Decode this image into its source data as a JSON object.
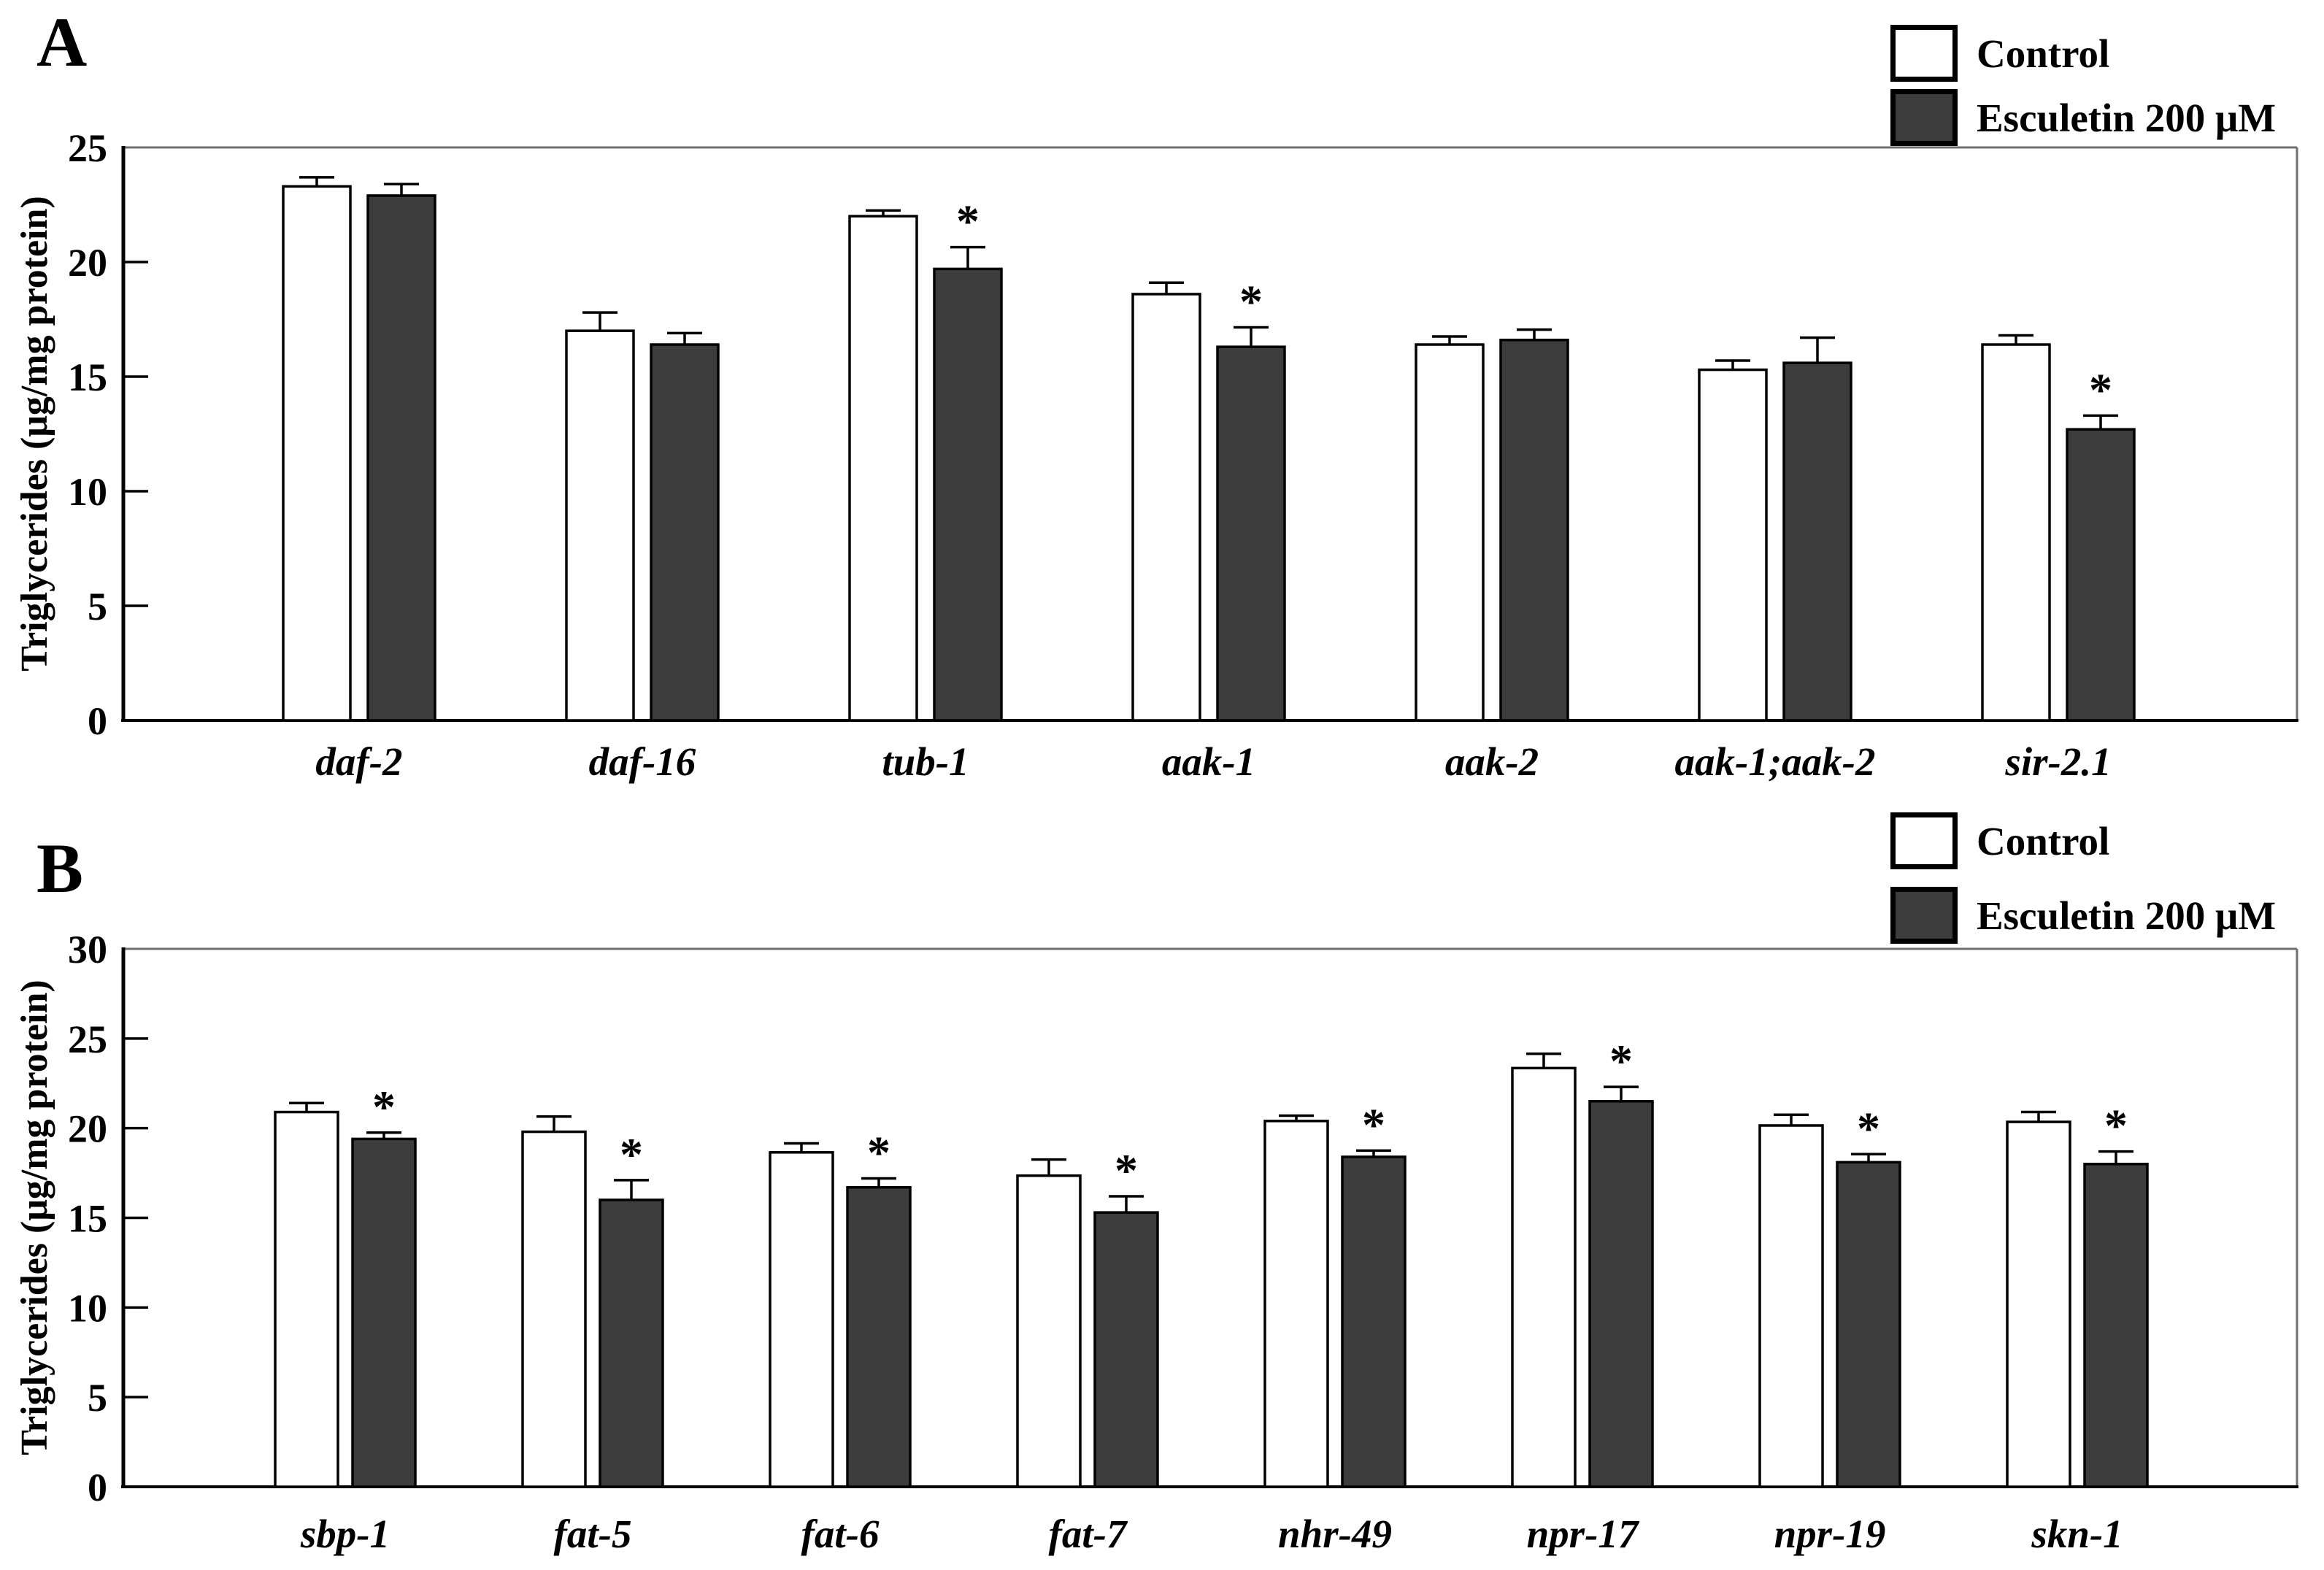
{
  "figure": {
    "background": "#ffffff",
    "significance_marker": "*",
    "colors": {
      "control_fill": "#ffffff",
      "esculetin_fill": "#3d3d3d",
      "bar_stroke": "#000000",
      "frame_gray": "#6f6f6f",
      "axis_black": "#000000"
    }
  },
  "panels": [
    {
      "label": "A",
      "legend": {
        "items": [
          {
            "label": "Control",
            "fill": "#ffffff"
          },
          {
            "label": "Esculetin 200 μM",
            "fill": "#3d3d3d"
          }
        ]
      },
      "chart_data": {
        "type": "bar",
        "title": "",
        "xlabel": "",
        "ylabel": "Triglycerides (μg/mg protein)",
        "ylim": [
          0,
          25
        ],
        "yticks": [
          0,
          5,
          10,
          15,
          20,
          25
        ],
        "grid": false,
        "legend_position": "top-right",
        "error_bars": "upper-sd",
        "significance_marker": "*",
        "categories": [
          "daf-2",
          "daf-16",
          "tub-1",
          "aak-1",
          "aak-2",
          "aak-1;aak-2",
          "sir-2.1"
        ],
        "series": [
          {
            "name": "Control",
            "fill": "#ffffff",
            "values": [
              23.3,
              17.0,
              22.0,
              18.6,
              16.4,
              15.3,
              16.4
            ],
            "errors": [
              0.4,
              0.8,
              0.25,
              0.5,
              0.35,
              0.4,
              0.4
            ],
            "significant": [
              false,
              false,
              false,
              false,
              false,
              false,
              false
            ]
          },
          {
            "name": "Esculetin 200 μM",
            "fill": "#3d3d3d",
            "values": [
              22.9,
              16.4,
              19.7,
              16.3,
              16.6,
              15.6,
              12.7
            ],
            "errors": [
              0.5,
              0.5,
              0.95,
              0.85,
              0.45,
              1.1,
              0.6
            ],
            "significant": [
              false,
              false,
              true,
              true,
              false,
              false,
              true
            ]
          }
        ]
      }
    },
    {
      "label": "B",
      "legend": {
        "items": [
          {
            "label": "Control",
            "fill": "#ffffff"
          },
          {
            "label": "Esculetin 200 μM",
            "fill": "#3d3d3d"
          }
        ]
      },
      "chart_data": {
        "type": "bar",
        "title": "",
        "xlabel": "",
        "ylabel": "Triglycerides (μg/mg protein)",
        "ylim": [
          0,
          30
        ],
        "yticks": [
          0,
          5,
          10,
          15,
          20,
          25,
          30
        ],
        "grid": false,
        "legend_position": "top-right",
        "error_bars": "upper-sd",
        "significance_marker": "*",
        "categories": [
          "sbp-1",
          "fat-5",
          "fat-6",
          "fat-7",
          "nhr-49",
          "npr-17",
          "npr-19",
          "skn-1"
        ],
        "series": [
          {
            "name": "Control",
            "fill": "#ffffff",
            "values": [
              20.9,
              19.8,
              18.65,
              17.35,
              20.4,
              23.35,
              20.15,
              20.35
            ],
            "errors": [
              0.5,
              0.85,
              0.5,
              0.9,
              0.3,
              0.8,
              0.6,
              0.55
            ],
            "significant": [
              false,
              false,
              false,
              false,
              false,
              false,
              false,
              false
            ]
          },
          {
            "name": "Esculetin 200 μM",
            "fill": "#3d3d3d",
            "values": [
              19.4,
              16.0,
              16.7,
              15.3,
              18.4,
              21.5,
              18.1,
              18.0
            ],
            "errors": [
              0.35,
              1.1,
              0.5,
              0.9,
              0.35,
              0.8,
              0.45,
              0.7
            ],
            "significant": [
              true,
              true,
              true,
              true,
              true,
              true,
              true,
              true
            ]
          }
        ]
      }
    }
  ]
}
